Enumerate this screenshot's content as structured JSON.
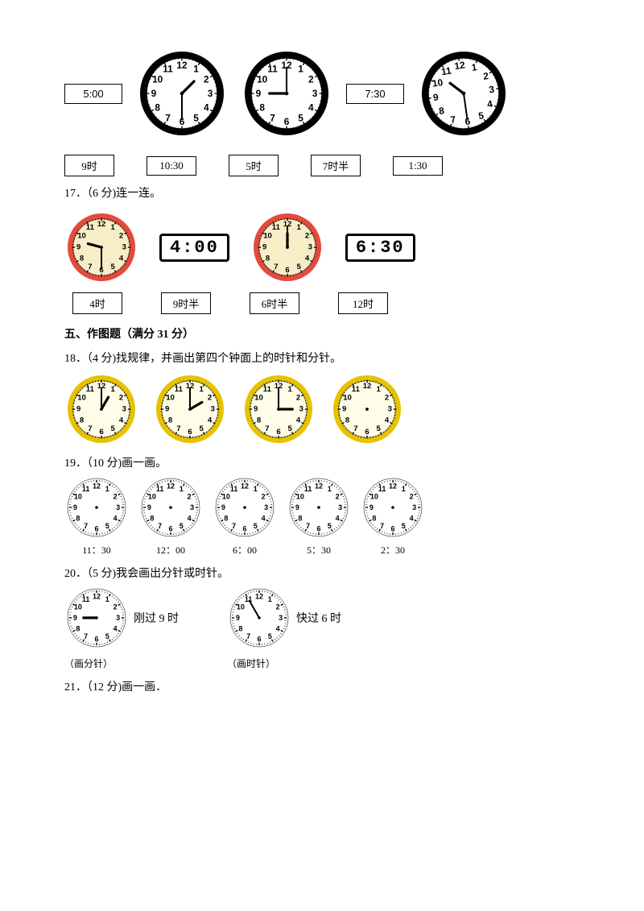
{
  "row_top": {
    "box1": "5:00",
    "clock1": {
      "type": "analog",
      "rim": "#000",
      "face": "#fff",
      "hour": 1,
      "minute": 30,
      "radius": 52,
      "thickRim": true,
      "numbers": true,
      "ticks": true
    },
    "clock2": {
      "type": "analog",
      "rim": "#000",
      "face": "#fff",
      "hour": 9,
      "minute": 0,
      "radius": 52,
      "thickRim": true,
      "numbers": true,
      "ticks": true
    },
    "box2": "7:30",
    "clock3": {
      "type": "analog",
      "rim": "#000",
      "face": "#fff",
      "hour": 10,
      "minute": 30,
      "radius": 52,
      "thickRim": true,
      "numbers": true,
      "ticks": true,
      "tilt": -8
    }
  },
  "labels_row": [
    "9时",
    "10:30",
    "5时",
    "7时半",
    "1:30"
  ],
  "q17": {
    "text": "17．（6 分)连一连。"
  },
  "q17_items": {
    "clockA": {
      "type": "analog",
      "rim": "#e34b3d",
      "face": "#f7eec7",
      "hour": 9,
      "minute": 30,
      "radius": 42,
      "thickRim": true,
      "numbers": true,
      "ticks": true,
      "hand_color": "#000"
    },
    "digitalA": "4:00",
    "clockB": {
      "type": "analog",
      "rim": "#e34b3d",
      "face": "#f7eec7",
      "hour": 12,
      "minute": 0,
      "radius": 42,
      "thickRim": true,
      "numbers": true,
      "ticks": true,
      "hand_color": "#000"
    },
    "digitalB": "6:30",
    "labels": [
      "4时",
      "9时半",
      "6时半",
      "12时"
    ]
  },
  "section5": "五、作图题（满分 31 分）",
  "q18": {
    "text": "18．（4 分)找规律，并画出第四个钟面上的时针和分针。"
  },
  "q18_clocks": [
    {
      "type": "analog",
      "rim": "#e7c200",
      "face": "#fefde8",
      "hour": 1,
      "minute": 0,
      "radius": 42,
      "thickRim": true,
      "numbers": true,
      "ticks": true
    },
    {
      "type": "analog",
      "rim": "#e7c200",
      "face": "#fefde8",
      "hour": 2,
      "minute": 0,
      "radius": 42,
      "thickRim": true,
      "numbers": true,
      "ticks": true
    },
    {
      "type": "analog",
      "rim": "#e7c200",
      "face": "#fefde8",
      "hour": 3,
      "minute": 0,
      "radius": 42,
      "thickRim": true,
      "numbers": true,
      "ticks": true
    },
    {
      "type": "analog",
      "rim": "#e7c200",
      "face": "#fefde8",
      "hour": null,
      "minute": null,
      "radius": 42,
      "thickRim": true,
      "numbers": true,
      "ticks": true,
      "blank": true
    }
  ],
  "q19": {
    "text": "19．（10 分)画一画。"
  },
  "q19_clocks": [
    {
      "label": "11：30",
      "cfg": {
        "type": "analog",
        "rim": "#000",
        "face": "#fff",
        "hour": null,
        "minute": null,
        "radius": 36,
        "thickRim": false,
        "numbers": true,
        "ticks": true,
        "blank": true
      }
    },
    {
      "label": "12：00",
      "cfg": {
        "type": "analog",
        "rim": "#000",
        "face": "#fff",
        "hour": null,
        "minute": null,
        "radius": 36,
        "thickRim": false,
        "numbers": true,
        "ticks": true,
        "blank": true
      }
    },
    {
      "label": "6：00",
      "cfg": {
        "type": "analog",
        "rim": "#000",
        "face": "#fff",
        "hour": null,
        "minute": null,
        "radius": 36,
        "thickRim": false,
        "numbers": true,
        "ticks": true,
        "blank": true
      }
    },
    {
      "label": "5：30",
      "cfg": {
        "type": "analog",
        "rim": "#000",
        "face": "#fff",
        "hour": null,
        "minute": null,
        "radius": 36,
        "thickRim": false,
        "numbers": true,
        "ticks": true,
        "blank": true
      }
    },
    {
      "label": "2：30",
      "cfg": {
        "type": "analog",
        "rim": "#000",
        "face": "#fff",
        "hour": null,
        "minute": null,
        "radius": 36,
        "thickRim": false,
        "numbers": true,
        "ticks": true,
        "blank": true
      }
    }
  ],
  "q20": {
    "text": "20．（5 分)我会画出分针或时针。"
  },
  "q20_items": [
    {
      "side_text": "刚过 9 时",
      "caption": "（画分针）",
      "cfg": {
        "type": "analog",
        "rim": "#000",
        "face": "#fff",
        "hour": 9,
        "minute": null,
        "radius": 36,
        "thickRim": false,
        "numbers": true,
        "ticks": true,
        "only_hour": true
      }
    },
    {
      "side_text": "快过 6 时",
      "caption": "（画时针）",
      "cfg": {
        "type": "analog",
        "rim": "#000",
        "face": "#fff",
        "hour": null,
        "minute": 55,
        "radius": 36,
        "thickRim": false,
        "numbers": true,
        "ticks": true,
        "only_minute": true
      }
    }
  ],
  "q21": {
    "text": "21．（12 分)画一画．"
  }
}
